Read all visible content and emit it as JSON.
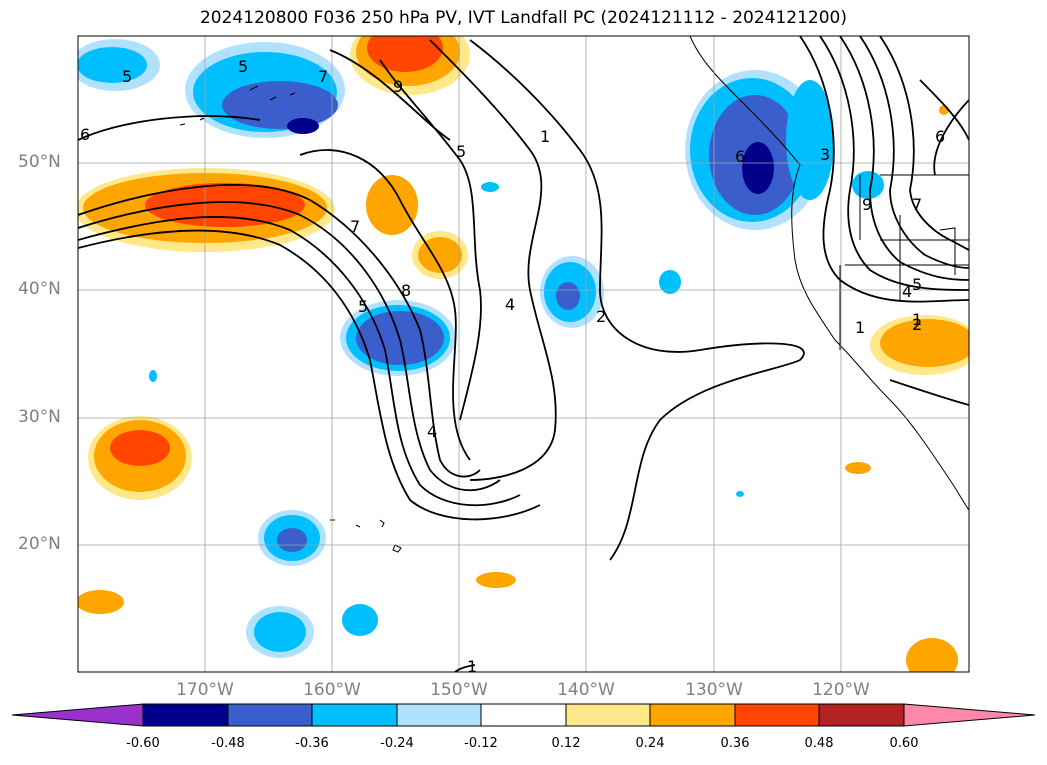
{
  "title": "2024120800 F036 250 hPa PV, IVT Landfall PC (2024121112 - 2024121200)",
  "lat_labels": [
    "50°N",
    "40°N",
    "30°N",
    "20°N"
  ],
  "lon_labels": [
    "170°W",
    "160°W",
    "150°W",
    "140°W",
    "130°W",
    "120°W"
  ],
  "contour_labels": [
    "5",
    "5",
    "7",
    "9",
    "6",
    "5",
    "1",
    "2",
    "4",
    "8",
    "7",
    "5",
    "4",
    "1",
    "3",
    "6",
    "9",
    "7",
    "4",
    "5",
    "1",
    "2",
    "6",
    "1"
  ],
  "colorbar": {
    "ticks": [
      "-0.60",
      "-0.48",
      "-0.36",
      "-0.24",
      "-0.12",
      "0.12",
      "0.24",
      "0.36",
      "0.48",
      "0.60"
    ],
    "colors": {
      "under": "#9932cc",
      "bins": [
        "#00008b",
        "#3a5fcd",
        "#00bfff",
        "#b0e2ff",
        "#ffffff",
        "#ffe88a",
        "#ffa500",
        "#ff4500",
        "#b22222",
        "#ff88aa"
      ],
      "over": "#ff88aa"
    }
  },
  "colors": {
    "neg_strong": "#00008b",
    "neg_med": "#3a5fcd",
    "neg_light": "#00bfff",
    "neg_faint": "#b0e2ff",
    "pos_faint": "#ffe88a",
    "pos_light": "#ffa500",
    "pos_med": "#ff4500",
    "grid": "#a0a0a0"
  }
}
